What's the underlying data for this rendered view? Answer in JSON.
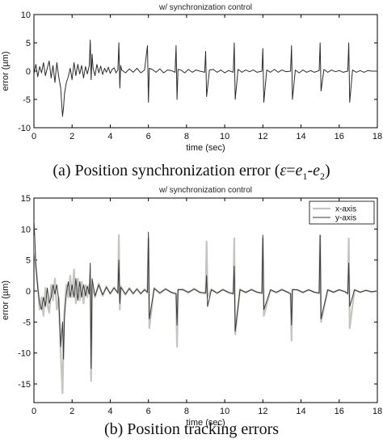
{
  "chart_data": [
    {
      "type": "line",
      "title": "w/ synchronization control",
      "xlabel": "time (sec)",
      "ylabel": "error (µm)",
      "xlim": [
        0,
        18
      ],
      "ylim": [
        -10,
        10
      ],
      "x_ticks": [
        0,
        2,
        4,
        6,
        8,
        10,
        12,
        14,
        16,
        18
      ],
      "y_ticks": [
        -10,
        -5,
        0,
        5,
        10
      ],
      "grid": false,
      "caption": {
        "prefix": "(a) Position synchronization error (",
        "eps": "ε",
        "eq": "=",
        "e": "e",
        "sub1": "1",
        "minus": "-",
        "sub2": "2",
        "suffix": ")"
      },
      "series": [
        {
          "color": "#2b2b2b",
          "x": [
            0,
            0.1,
            0.2,
            0.3,
            0.4,
            0.5,
            0.6,
            0.7,
            0.8,
            0.9,
            1.0,
            1.1,
            1.2,
            1.3,
            1.4,
            1.5,
            1.55,
            1.6,
            1.7,
            1.8,
            1.9,
            2.0,
            2.1,
            2.2,
            2.3,
            2.4,
            2.5,
            2.6,
            2.7,
            2.8,
            2.9,
            2.95,
            3.0,
            3.05,
            3.1,
            3.2,
            3.3,
            3.4,
            3.5,
            3.6,
            3.7,
            3.8,
            3.9,
            4.0,
            4.1,
            4.2,
            4.3,
            4.4,
            4.45,
            4.5,
            4.55,
            4.6,
            4.8,
            5.0,
            5.2,
            5.4,
            5.6,
            5.8,
            5.95,
            6.0,
            6.05,
            6.2,
            6.4,
            6.6,
            6.8,
            7.0,
            7.2,
            7.4,
            7.45,
            7.5,
            7.55,
            7.7,
            7.9,
            8.1,
            8.3,
            8.5,
            8.7,
            8.95,
            9.0,
            9.05,
            9.2,
            9.4,
            9.6,
            9.8,
            10.0,
            10.2,
            10.45,
            10.5,
            10.55,
            10.7,
            10.9,
            11.1,
            11.3,
            11.5,
            11.7,
            11.95,
            12.0,
            12.05,
            12.2,
            12.4,
            12.6,
            12.8,
            13.0,
            13.2,
            13.45,
            13.5,
            13.55,
            13.7,
            13.9,
            14.1,
            14.3,
            14.5,
            14.7,
            14.95,
            15.0,
            15.05,
            15.2,
            15.4,
            15.6,
            15.8,
            16.0,
            16.2,
            16.45,
            16.5,
            16.55,
            16.7,
            16.9,
            17.1,
            17.3,
            17.5,
            17.7,
            18.0
          ],
          "y": [
            -0.5,
            1.2,
            -1.0,
            0.8,
            -0.3,
            1.5,
            -0.8,
            0.5,
            1.8,
            -1.2,
            1.0,
            -2.0,
            1.5,
            -1.0,
            -3.0,
            -8.0,
            -6.5,
            -4.0,
            -2.0,
            -1.0,
            0.5,
            -1.5,
            1.5,
            -0.8,
            1.2,
            -0.5,
            1.0,
            -1.2,
            0.8,
            -0.5,
            1.0,
            5.5,
            -1.5,
            3.0,
            0.5,
            -0.8,
            1.2,
            -0.3,
            0.9,
            -0.6,
            0.5,
            -0.2,
            0.7,
            -0.4,
            0.3,
            0.6,
            -0.3,
            0.2,
            5.0,
            -3.0,
            1.0,
            0.2,
            -0.3,
            0.4,
            -0.2,
            0.5,
            -0.3,
            0.2,
            4.5,
            -5.5,
            0.5,
            0.3,
            -0.2,
            0.4,
            -0.3,
            0.2,
            0.1,
            -0.2,
            4.5,
            -5.0,
            0.3,
            0.2,
            -0.3,
            0.3,
            -0.2,
            0.2,
            0.0,
            -0.2,
            3.5,
            -4.5,
            0.2,
            0.3,
            -0.2,
            0.2,
            -0.3,
            0.1,
            -0.2,
            5.0,
            -5.0,
            0.3,
            -0.2,
            0.2,
            -0.1,
            0.2,
            -0.2,
            0.0,
            4.0,
            -5.5,
            0.2,
            -0.2,
            0.3,
            -0.2,
            0.2,
            -0.1,
            0.0,
            4.5,
            -5.0,
            0.2,
            -0.3,
            0.2,
            -0.2,
            0.1,
            -0.2,
            0.1,
            5.0,
            -3.5,
            0.3,
            -0.2,
            0.2,
            -0.1,
            0.1,
            -0.2,
            0.0,
            5.0,
            -5.5,
            0.2,
            -0.2,
            0.1,
            -0.2,
            0.1,
            0.0,
            0.0
          ]
        }
      ]
    },
    {
      "type": "line",
      "title": "w/ synchronization control",
      "xlabel": "time (sec)",
      "ylabel": "error (µm)",
      "xlim": [
        0,
        18
      ],
      "ylim": [
        -18,
        15
      ],
      "x_ticks": [
        0,
        2,
        4,
        6,
        8,
        10,
        12,
        14,
        16,
        18
      ],
      "y_ticks": [
        -15,
        -10,
        -5,
        0,
        5,
        10,
        15
      ],
      "grid": false,
      "legend_position": "top-right",
      "caption": {
        "text": "(b) Position tracking errors"
      },
      "series": [
        {
          "name": "x-axis",
          "color": "#c4c4c0",
          "x": [
            0,
            0.05,
            0.1,
            0.2,
            0.3,
            0.4,
            0.5,
            0.6,
            0.7,
            0.8,
            0.9,
            1.0,
            1.1,
            1.2,
            1.3,
            1.4,
            1.5,
            1.55,
            1.6,
            1.7,
            1.8,
            1.9,
            2.0,
            2.1,
            2.2,
            2.3,
            2.4,
            2.5,
            2.6,
            2.7,
            2.8,
            2.9,
            2.95,
            3.0,
            3.05,
            3.2,
            3.4,
            3.6,
            3.8,
            4.0,
            4.2,
            4.4,
            4.45,
            4.5,
            4.55,
            4.8,
            5.0,
            5.2,
            5.4,
            5.6,
            5.8,
            5.95,
            6.0,
            6.05,
            6.3,
            6.6,
            6.9,
            7.2,
            7.45,
            7.5,
            7.55,
            7.8,
            8.1,
            8.4,
            8.7,
            9.0,
            9.05,
            9.1,
            9.3,
            9.6,
            9.9,
            10.2,
            10.45,
            10.5,
            10.55,
            10.8,
            11.1,
            11.4,
            11.7,
            11.95,
            12.0,
            12.05,
            12.4,
            12.7,
            13.0,
            13.3,
            13.45,
            13.5,
            13.55,
            13.8,
            14.1,
            14.4,
            14.7,
            14.95,
            15.0,
            15.05,
            15.4,
            15.7,
            16.0,
            16.3,
            16.45,
            16.5,
            16.55,
            16.8,
            17.1,
            17.4,
            17.7,
            18.0
          ],
          "y": [
            9.0,
            6.0,
            4.0,
            1.0,
            -3.0,
            -1.0,
            -4.0,
            0.5,
            -2.0,
            -3.5,
            1.0,
            -1.5,
            2.0,
            -3.0,
            -1.0,
            -10.0,
            -16.5,
            -8.0,
            -3.0,
            1.0,
            -1.0,
            2.5,
            -1.0,
            3.5,
            -2.0,
            2.0,
            -1.5,
            1.5,
            -2.0,
            1.0,
            -1.0,
            1.0,
            0.5,
            -14.5,
            1.0,
            -1.0,
            1.2,
            -0.8,
            0.8,
            -0.5,
            0.6,
            -0.4,
            9.0,
            -3.0,
            0.8,
            -0.6,
            0.5,
            -0.5,
            0.4,
            -0.5,
            0.3,
            -0.3,
            8.5,
            -6.0,
            0.5,
            -0.4,
            0.4,
            -0.3,
            -0.5,
            -9.0,
            0.3,
            0.3,
            -0.3,
            0.4,
            -0.3,
            -0.4,
            8.0,
            -1.0,
            0.3,
            -0.4,
            0.3,
            -0.3,
            -0.5,
            8.5,
            -7.0,
            0.3,
            -0.3,
            0.3,
            -0.2,
            -0.4,
            8.5,
            -4.0,
            0.2,
            -0.3,
            0.3,
            -0.2,
            -0.5,
            -8.0,
            0.3,
            0.2,
            -0.3,
            0.2,
            -0.2,
            -0.4,
            9.0,
            -5.0,
            0.2,
            -0.2,
            0.2,
            -0.1,
            -0.5,
            8.5,
            -6.0,
            0.2,
            -0.2,
            0.1,
            -0.2,
            0.0
          ]
        },
        {
          "name": "y-axis",
          "color": "#3a3a3a",
          "x": [
            0,
            0.05,
            0.1,
            0.2,
            0.3,
            0.4,
            0.5,
            0.6,
            0.7,
            0.8,
            0.9,
            1.0,
            1.1,
            1.2,
            1.3,
            1.4,
            1.5,
            1.55,
            1.6,
            1.7,
            1.8,
            1.9,
            2.0,
            2.1,
            2.2,
            2.3,
            2.4,
            2.5,
            2.6,
            2.7,
            2.8,
            2.9,
            2.95,
            3.0,
            3.05,
            3.2,
            3.4,
            3.6,
            3.8,
            4.0,
            4.2,
            4.4,
            4.45,
            4.5,
            4.55,
            4.8,
            5.0,
            5.2,
            5.4,
            5.6,
            5.8,
            5.95,
            6.0,
            6.05,
            6.3,
            6.6,
            6.9,
            7.2,
            7.45,
            7.5,
            7.55,
            7.8,
            8.1,
            8.4,
            8.7,
            9.0,
            9.05,
            9.1,
            9.3,
            9.6,
            9.9,
            10.2,
            10.45,
            10.5,
            10.55,
            10.8,
            11.1,
            11.4,
            11.7,
            11.95,
            12.0,
            12.05,
            12.4,
            12.7,
            13.0,
            13.3,
            13.45,
            13.5,
            13.55,
            13.8,
            14.1,
            14.4,
            14.7,
            14.95,
            15.0,
            15.05,
            15.4,
            15.7,
            16.0,
            16.3,
            16.45,
            16.5,
            16.55,
            16.8,
            17.1,
            17.4,
            17.7,
            18.0
          ],
          "y": [
            11.5,
            8.0,
            4.0,
            0.5,
            -2.0,
            -3.0,
            -1.0,
            -2.5,
            0.5,
            -2.0,
            -1.0,
            1.0,
            -0.5,
            1.0,
            -1.5,
            -9.0,
            -5.0,
            -11.0,
            -4.0,
            -0.5,
            1.5,
            -1.0,
            1.0,
            -1.0,
            2.0,
            -1.5,
            1.5,
            -1.0,
            1.0,
            -0.8,
            0.8,
            -0.5,
            4.5,
            -12.5,
            2.0,
            -0.8,
            1.0,
            -0.6,
            0.6,
            -0.4,
            0.5,
            -0.3,
            5.0,
            -2.0,
            0.6,
            -0.5,
            0.4,
            -0.4,
            0.3,
            -0.4,
            0.2,
            -0.2,
            9.5,
            -4.5,
            0.4,
            -0.3,
            0.3,
            -0.2,
            -0.4,
            -5.5,
            0.2,
            0.2,
            -0.2,
            0.3,
            -0.2,
            -0.3,
            2.5,
            -2.5,
            0.2,
            -0.3,
            0.2,
            -0.2,
            -0.4,
            4.0,
            -6.5,
            0.2,
            -0.2,
            0.2,
            -0.2,
            -0.3,
            9.0,
            -3.0,
            0.2,
            -0.2,
            0.2,
            -0.2,
            -0.4,
            -5.5,
            0.2,
            0.2,
            -0.2,
            0.2,
            -0.2,
            -0.3,
            9.0,
            -4.5,
            0.2,
            -0.2,
            0.2,
            -0.1,
            -0.4,
            4.5,
            -2.5,
            0.2,
            -0.2,
            0.1,
            -0.1,
            0.0
          ]
        }
      ]
    }
  ]
}
